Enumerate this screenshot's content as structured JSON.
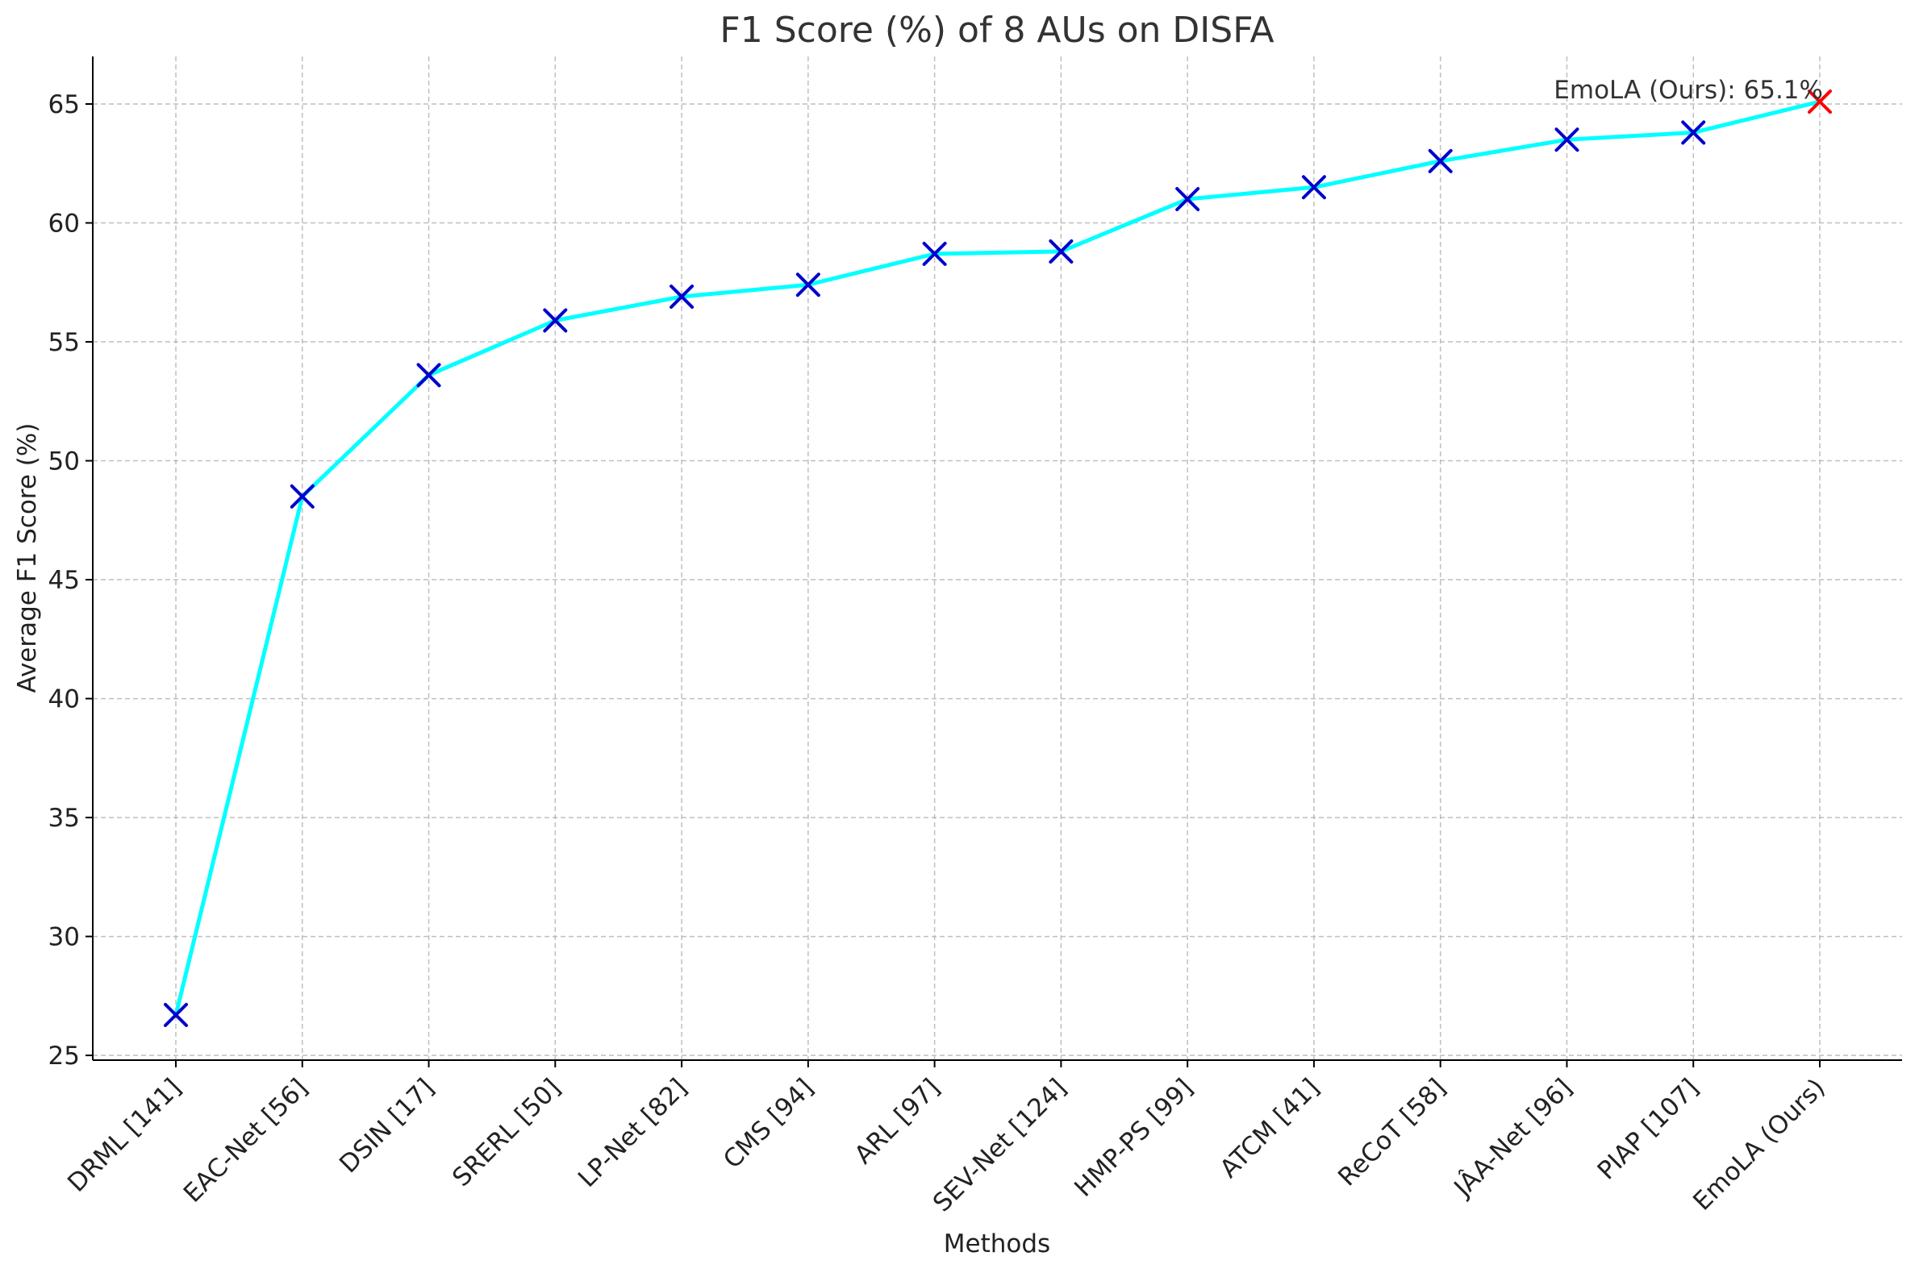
{
  "chart_data": {
    "type": "line",
    "title": "F1 Score (%) of 8 AUs on DISFA",
    "xlabel": "Methods",
    "ylabel": "Average F1 Score (%)",
    "categories": [
      "DRML [141]",
      "EAC-Net [56]",
      "DSIN [17]",
      "SRERL [50]",
      "LP-Net [82]",
      "CMS [94]",
      "ARL [97]",
      "SEV-Net [124]",
      "HMP-PS [99]",
      "ATCM [41]",
      "ReCoT [58]",
      "JÂA-Net [96]",
      "PIAP [107]",
      "EmoLA (Ours)"
    ],
    "series": [
      {
        "values": [
          26.7,
          48.5,
          53.6,
          55.9,
          56.9,
          57.4,
          58.7,
          58.8,
          61.0,
          61.5,
          62.6,
          63.5,
          63.8,
          65.1
        ]
      }
    ],
    "ylim": [
      24.8,
      67.0
    ],
    "yticks": [
      25,
      30,
      35,
      40,
      45,
      50,
      55,
      60,
      65
    ],
    "grid": true,
    "line_color": "#00ffff",
    "marker_color": "#0000cc",
    "highlight_marker_color": "#ff0000",
    "highlight_index": 13,
    "annotation": "EmoLA (Ours): 65.1%"
  }
}
